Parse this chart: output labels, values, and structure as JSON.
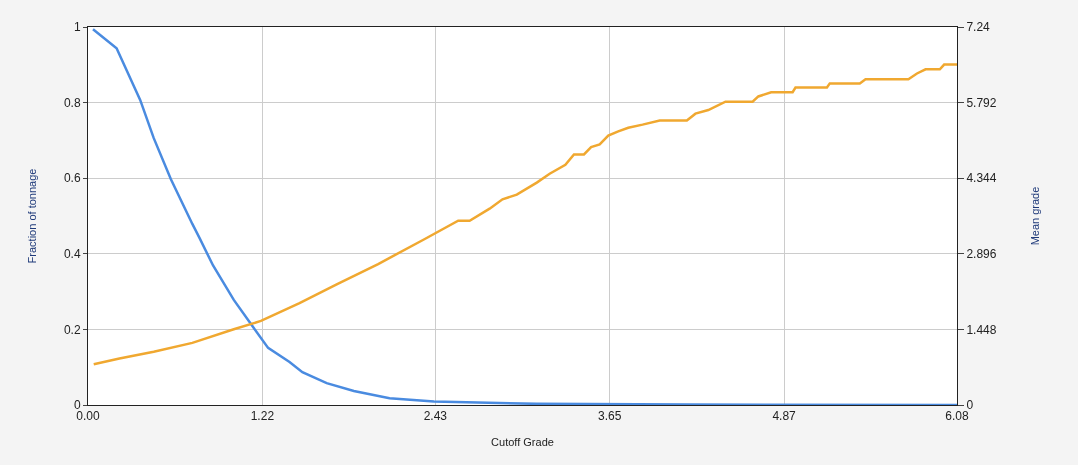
{
  "chart_data": {
    "type": "line",
    "xlabel": "Cutoff Grade",
    "ylabel": "Fraction of tonnage",
    "y2label": "Mean grade",
    "xlim": [
      0,
      6.08
    ],
    "xticks": [
      {
        "value": 0,
        "label": "0.00"
      },
      1.22,
      2.43,
      3.65,
      4.87,
      6.08
    ],
    "ylim": [
      0,
      1
    ],
    "yticks": [
      0,
      0.2,
      0.4,
      0.6,
      0.8,
      1
    ],
    "y2lim": [
      0,
      7.24
    ],
    "y2ticks": [
      0,
      1.448,
      2.896,
      4.344,
      5.792,
      7.24
    ],
    "grid": true,
    "marker": "none",
    "line_style": "solid",
    "series": [
      {
        "color": "#4a8be0",
        "x": [
          0.035,
          0.2,
          0.365,
          0.46,
          0.58,
          0.73,
          0.78,
          0.875,
          1.02,
          1.15,
          1.26,
          1.41,
          1.5,
          1.67,
          1.86,
          2.11,
          2.42,
          3.14,
          4.2,
          6.08
        ],
        "values": [
          0.994,
          0.944,
          0.807,
          0.706,
          0.597,
          0.479,
          0.442,
          0.369,
          0.278,
          0.209,
          0.151,
          0.114,
          0.087,
          0.058,
          0.037,
          0.018,
          0.009,
          0.003,
          0.001,
          0
        ]
      },
      {
        "color": "#f0a830",
        "axis": "y2",
        "x": [
          0.04,
          0.22,
          0.46,
          0.73,
          1.02,
          1.21,
          1.48,
          1.74,
          2.03,
          2.35,
          2.59,
          2.67,
          2.81,
          2.9,
          3.0,
          3.14,
          3.23,
          3.34,
          3.4,
          3.47,
          3.52,
          3.58,
          3.64,
          3.71,
          3.78,
          3.88,
          4.0,
          4.19,
          4.25,
          4.34,
          4.46,
          4.65,
          4.69,
          4.78,
          4.93,
          4.95,
          5.17,
          5.19,
          5.4,
          5.44,
          5.74,
          5.8,
          5.86,
          5.96,
          5.99,
          6.08
        ],
        "values": [
          0.78,
          0.89,
          1.02,
          1.19,
          1.45,
          1.61,
          1.95,
          2.31,
          2.7,
          3.17,
          3.53,
          3.53,
          3.76,
          3.94,
          4.03,
          4.26,
          4.43,
          4.6,
          4.8,
          4.8,
          4.94,
          4.99,
          5.16,
          5.24,
          5.31,
          5.37,
          5.45,
          5.45,
          5.58,
          5.65,
          5.81,
          5.81,
          5.91,
          5.99,
          5.99,
          6.08,
          6.08,
          6.16,
          6.16,
          6.24,
          6.24,
          6.35,
          6.43,
          6.43,
          6.52,
          6.52
        ]
      }
    ]
  }
}
